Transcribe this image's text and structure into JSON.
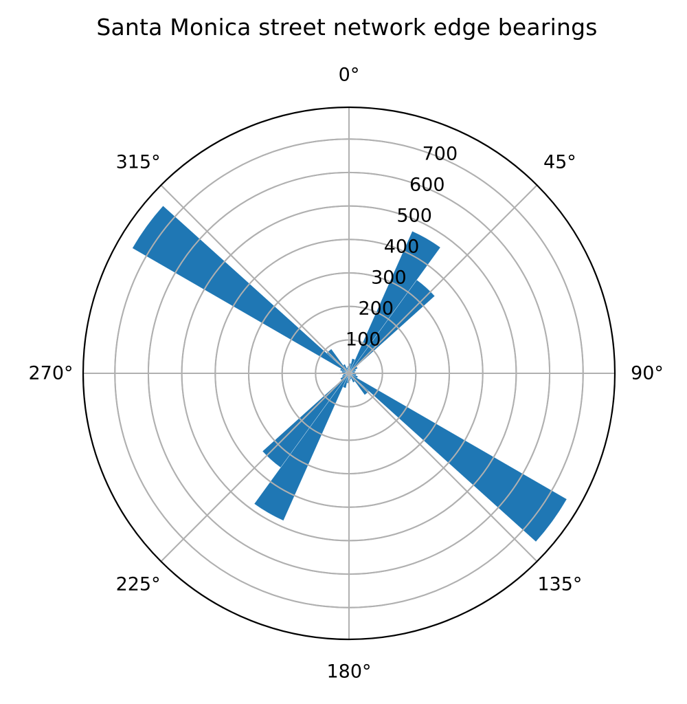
{
  "chart_data": {
    "type": "bar",
    "subtype": "polar",
    "title": "Santa Monica street network edge bearings",
    "xlabel": "",
    "ylabel": "",
    "theta_direction": "clockwise",
    "theta_zero": "N",
    "bin_width_deg": 12,
    "bin_starts_deg": [
      0,
      12,
      24,
      36,
      48,
      60,
      72,
      84,
      96,
      108,
      120,
      132,
      144,
      156,
      168,
      180,
      192,
      204,
      216,
      228,
      240,
      252,
      264,
      276,
      288,
      300,
      312,
      324,
      336,
      348
    ],
    "values": [
      30,
      45,
      465,
      345,
      30,
      22,
      18,
      28,
      22,
      28,
      752,
      80,
      30,
      18,
      22,
      30,
      45,
      482,
      348,
      30,
      22,
      18,
      28,
      22,
      28,
      748,
      90,
      30,
      18,
      22
    ],
    "theta_ticks": [
      0,
      45,
      90,
      135,
      180,
      225,
      270,
      315
    ],
    "theta_tick_labels": [
      "0°",
      "45°",
      "90°",
      "135°",
      "180°",
      "225°",
      "270°",
      "315°"
    ],
    "r_ticks": [
      100,
      200,
      300,
      400,
      500,
      600,
      700
    ],
    "r_tick_labels": [
      "100",
      "200",
      "300",
      "400",
      "500",
      "600",
      "700"
    ],
    "rlim": [
      0,
      795
    ],
    "grid": true,
    "legend": null,
    "bar_color": "#1f77b4",
    "grid_color": "#b0b0b0"
  }
}
